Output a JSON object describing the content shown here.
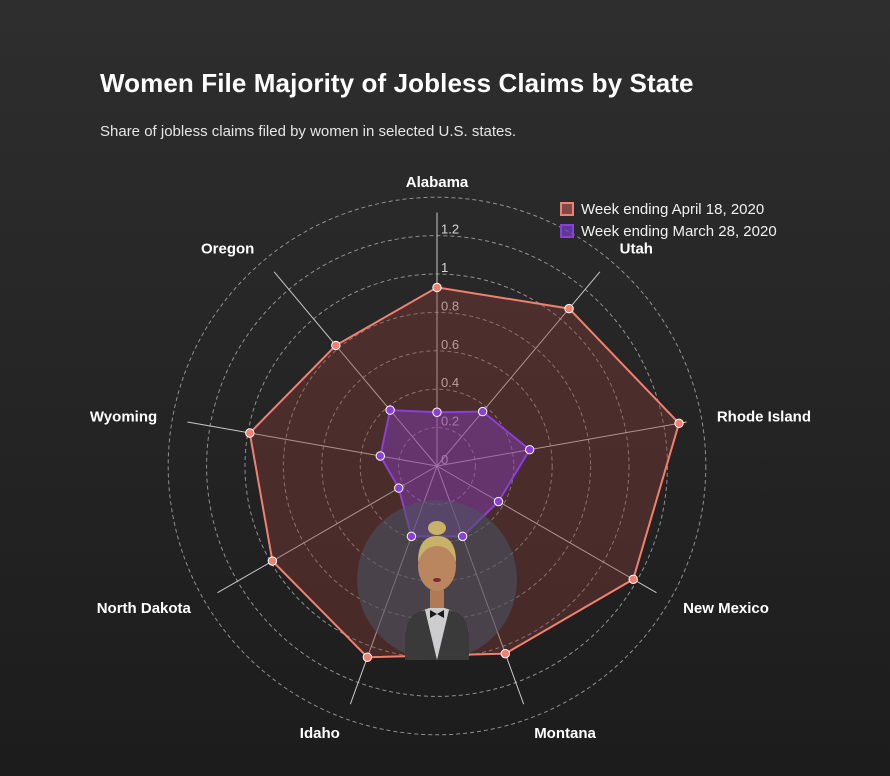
{
  "title": "Women File Majority of Jobless Claims by State",
  "subtitle": "Share of jobless claims filed by women in selected U.S. states.",
  "colors": {
    "apr": "#f08070",
    "mar": "#8a3fd6",
    "grid": "#bdbdbd"
  },
  "chart_data": {
    "type": "radar",
    "categories": [
      "Alabama",
      "Utah",
      "Rhode Island",
      "New Mexico",
      "Montana",
      "Idaho",
      "North Dakota",
      "Wyoming",
      "Oregon"
    ],
    "rlim": [
      0,
      1.2
    ],
    "ticks": [
      "0",
      "0.2",
      "0.4",
      "0.6",
      "0.8",
      "1",
      "1.2"
    ],
    "tick_values": [
      0,
      0.2,
      0.4,
      0.6,
      0.8,
      1.0,
      1.2
    ],
    "series": [
      {
        "name": "Week ending April 18, 2020",
        "values": [
          0.93,
          1.07,
          1.28,
          1.18,
          1.04,
          1.06,
          0.99,
          0.99,
          0.82
        ]
      },
      {
        "name": "Week ending March 28, 2020",
        "values": [
          0.28,
          0.37,
          0.49,
          0.37,
          0.39,
          0.39,
          0.23,
          0.3,
          0.38
        ]
      }
    ],
    "legend_position": "top-right",
    "grid": true
  }
}
